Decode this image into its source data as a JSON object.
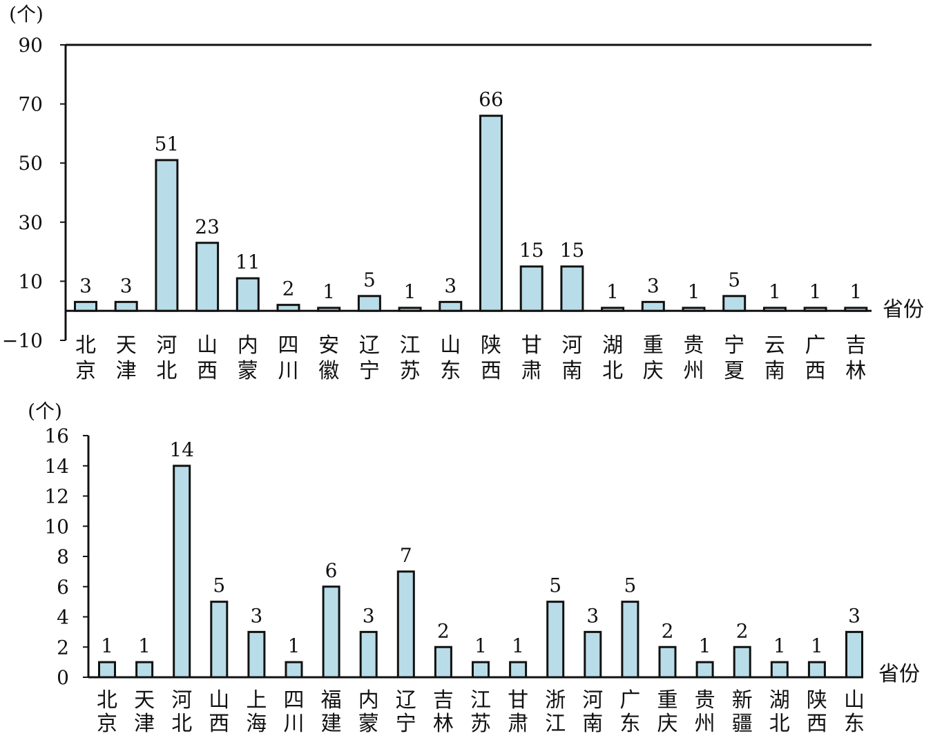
{
  "colors": {
    "bar_fill": "#b8dde8",
    "bar_stroke": "#111111",
    "axis": "#111111"
  },
  "chart_data": [
    {
      "type": "bar",
      "y_unit": "(个)",
      "xlabel": "省份",
      "ylim": [
        -10,
        90
      ],
      "yticks": [
        {
          "value": -10,
          "label": "−10"
        },
        {
          "value": 10,
          "label": "10"
        },
        {
          "value": 30,
          "label": "30"
        },
        {
          "value": 50,
          "label": "50"
        },
        {
          "value": 70,
          "label": "70"
        },
        {
          "value": 90,
          "label": "90"
        }
      ],
      "categories": [
        [
          "北",
          "京"
        ],
        [
          "天",
          "津"
        ],
        [
          "河",
          "北"
        ],
        [
          "山",
          "西"
        ],
        [
          "内",
          "蒙"
        ],
        [
          "四",
          "川"
        ],
        [
          "安",
          "徽"
        ],
        [
          "辽",
          "宁"
        ],
        [
          "江",
          "苏"
        ],
        [
          "山",
          "东"
        ],
        [
          "陕",
          "西"
        ],
        [
          "甘",
          "肃"
        ],
        [
          "河",
          "南"
        ],
        [
          "湖",
          "北"
        ],
        [
          "重",
          "庆"
        ],
        [
          "贵",
          "州"
        ],
        [
          "宁",
          "夏"
        ],
        [
          "云",
          "南"
        ],
        [
          "广",
          "西"
        ],
        [
          "吉",
          "林"
        ]
      ],
      "values": [
        3,
        3,
        51,
        23,
        11,
        2,
        1,
        5,
        1,
        3,
        66,
        15,
        15,
        1,
        3,
        1,
        5,
        1,
        1,
        1
      ],
      "value_labels": [
        "3",
        "3",
        "51",
        "23",
        "11",
        "2",
        "1",
        "5",
        "1",
        "3",
        "66",
        "15",
        "15",
        "1",
        "3",
        "1",
        "5",
        "1",
        "1",
        "1"
      ],
      "grid": false,
      "legend": "none"
    },
    {
      "type": "bar",
      "y_unit": "(个)",
      "xlabel": "省份",
      "ylim": [
        0,
        16
      ],
      "yticks": [
        {
          "value": 0,
          "label": "0"
        },
        {
          "value": 2,
          "label": "2"
        },
        {
          "value": 4,
          "label": "4"
        },
        {
          "value": 6,
          "label": "6"
        },
        {
          "value": 8,
          "label": "8"
        },
        {
          "value": 10,
          "label": "10"
        },
        {
          "value": 12,
          "label": "12"
        },
        {
          "value": 14,
          "label": "14"
        },
        {
          "value": 16,
          "label": "16"
        }
      ],
      "categories": [
        [
          "北",
          "京"
        ],
        [
          "天",
          "津"
        ],
        [
          "河",
          "北"
        ],
        [
          "山",
          "西"
        ],
        [
          "上",
          "海"
        ],
        [
          "四",
          "川"
        ],
        [
          "福",
          "建"
        ],
        [
          "内",
          "蒙"
        ],
        [
          "辽",
          "宁"
        ],
        [
          "吉",
          "林"
        ],
        [
          "江",
          "苏"
        ],
        [
          "甘",
          "肃"
        ],
        [
          "浙",
          "江"
        ],
        [
          "河",
          "南"
        ],
        [
          "广",
          "东"
        ],
        [
          "重",
          "庆"
        ],
        [
          "贵",
          "州"
        ],
        [
          "新",
          "疆"
        ],
        [
          "湖",
          "北"
        ],
        [
          "陕",
          "西"
        ],
        [
          "山",
          "东"
        ]
      ],
      "values": [
        1,
        1,
        14,
        5,
        3,
        1,
        6,
        3,
        7,
        2,
        1,
        1,
        5,
        3,
        5,
        2,
        1,
        2,
        1,
        1,
        3
      ],
      "value_labels": [
        "1",
        "1",
        "14",
        "5",
        "3",
        "1",
        "6",
        "3",
        "7",
        "2",
        "1",
        "1",
        "5",
        "3",
        "5",
        "2",
        "1",
        "2",
        "1",
        "1",
        "3"
      ],
      "grid": false,
      "legend": "none"
    }
  ]
}
